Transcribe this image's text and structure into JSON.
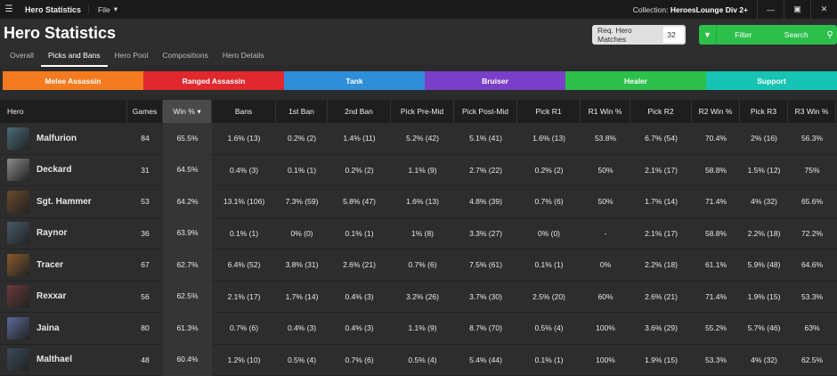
{
  "topbar": {
    "app_title": "Hero Statistics",
    "file_menu": "File",
    "collection_label": "Collection:",
    "collection_value": "HeroesLounge Div 2+"
  },
  "page": {
    "title": "Hero Statistics",
    "tabs": [
      "Overall",
      "Picks and Bans",
      "Hero Pool",
      "Compositions",
      "Hero Details"
    ],
    "active_tab": "Picks and Bans"
  },
  "controls": {
    "req_label": "Req. Hero Matches",
    "req_value": "32",
    "filter_label": "Filter",
    "search_label": "Search"
  },
  "roles": [
    {
      "label": "Melee Assassin",
      "color": "#f47b20"
    },
    {
      "label": "Ranged Assassin",
      "color": "#e0282e"
    },
    {
      "label": "Tank",
      "color": "#2f8ed8"
    },
    {
      "label": "Bruiser",
      "color": "#7a3fc8"
    },
    {
      "label": "Healer",
      "color": "#2cc04b"
    },
    {
      "label": "Support",
      "color": "#17c3b2"
    }
  ],
  "table": {
    "headers": [
      "Hero",
      "Games",
      "Win %",
      "Bans",
      "1st Ban",
      "2nd Ban",
      "Pick Pre-Mid",
      "Pick Post-Mid",
      "Pick R1",
      "R1 Win %",
      "Pick R2",
      "R2 Win %",
      "Pick R3",
      "R3 Win %"
    ],
    "sorted_column": "Win %",
    "rows": [
      {
        "hero": "Malfurion",
        "portrait_color": "#4a6a7a",
        "cells": [
          "84",
          "65.5%",
          "1.6% (13)",
          "0.2% (2)",
          "1.4% (11)",
          "5.2% (42)",
          "5.1% (41)",
          "1.6% (13)",
          "53.8%",
          "6.7% (54)",
          "70.4%",
          "2% (16)",
          "56.3%"
        ]
      },
      {
        "hero": "Deckard",
        "portrait_color": "#8a8a8a",
        "cells": [
          "31",
          "64.5%",
          "0.4% (3)",
          "0.1% (1)",
          "0.2% (2)",
          "1.1% (9)",
          "2.7% (22)",
          "0.2% (2)",
          "50%",
          "2.1% (17)",
          "58.8%",
          "1.5% (12)",
          "75%"
        ]
      },
      {
        "hero": "Sgt. Hammer",
        "portrait_color": "#6a4a2a",
        "cells": [
          "53",
          "64.2%",
          "13.1% (106)",
          "7.3% (59)",
          "5.8% (47)",
          "1.6% (13)",
          "4.8% (39)",
          "0.7% (6)",
          "50%",
          "1.7% (14)",
          "71.4%",
          "4% (32)",
          "65.6%"
        ]
      },
      {
        "hero": "Raynor",
        "portrait_color": "#4a5a6a",
        "cells": [
          "36",
          "63.9%",
          "0.1% (1)",
          "0% (0)",
          "0.1% (1)",
          "1% (8)",
          "3.3% (27)",
          "0% (0)",
          "-",
          "2.1% (17)",
          "58.8%",
          "2.2% (18)",
          "72.2%"
        ]
      },
      {
        "hero": "Tracer",
        "portrait_color": "#8a5a2a",
        "cells": [
          "67",
          "62.7%",
          "6.4% (52)",
          "3.8% (31)",
          "2.6% (21)",
          "0.7% (6)",
          "7.5% (61)",
          "0.1% (1)",
          "0%",
          "2.2% (18)",
          "61.1%",
          "5.9% (48)",
          "64.6%"
        ]
      },
      {
        "hero": "Rexxar",
        "portrait_color": "#6a3a3a",
        "cells": [
          "56",
          "62.5%",
          "2.1% (17)",
          "1.7% (14)",
          "0.4% (3)",
          "3.2% (26)",
          "3.7% (30)",
          "2.5% (20)",
          "60%",
          "2.6% (21)",
          "71.4%",
          "1.9% (15)",
          "53.3%"
        ]
      },
      {
        "hero": "Jaina",
        "portrait_color": "#5a6a9a",
        "cells": [
          "80",
          "61.3%",
          "0.7% (6)",
          "0.4% (3)",
          "0.4% (3)",
          "1.1% (9)",
          "8.7% (70)",
          "0.5% (4)",
          "100%",
          "3.6% (29)",
          "55.2%",
          "5.7% (46)",
          "63%"
        ]
      },
      {
        "hero": "Malthael",
        "portrait_color": "#3a4a5a",
        "cells": [
          "48",
          "60.4%",
          "1.2% (10)",
          "0.5% (4)",
          "0.7% (6)",
          "0.5% (4)",
          "5.4% (44)",
          "0.1% (1)",
          "100%",
          "1.9% (15)",
          "53.3%",
          "4% (32)",
          "62.5%"
        ]
      }
    ]
  },
  "icons": {
    "menu": "hamburger-icon",
    "file_dropdown": "caret-down-icon",
    "filter": "funnel-icon",
    "search": "search-icon",
    "sort": "sort-desc-icon"
  }
}
